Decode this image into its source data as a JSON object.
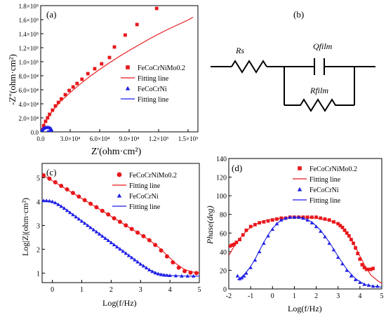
{
  "panels": {
    "a": {
      "tag": "(a)",
      "xlabel": "Z'(ohm·cm²)",
      "ylabel": "-Z''(ohm·cm²)",
      "xticks": [
        "0.0",
        "3.0×10⁴",
        "6.0×10⁴",
        "9.0×10⁴",
        "1.2×10⁵",
        "1.5×10⁵"
      ],
      "yticks": [
        "0.0",
        "2.0×10⁴",
        "4.0×10⁴",
        "6.0×10⁴",
        "8.0×10⁴",
        "1.0×10⁵",
        "1.2×10⁵",
        "1.4×10⁵",
        "1.6×10⁵",
        "1.8×10⁵"
      ],
      "legend": [
        "FeCoCrNiMo0.2",
        "Fitting line",
        "FeCoCrNi",
        "Fitting line"
      ]
    },
    "b": {
      "tag": "(b)",
      "rs_label": "Rs",
      "q_label": "Qfilm",
      "r_label": "Rfilm"
    },
    "c": {
      "tag": "(c)",
      "xlabel": "Log(f/Hz)",
      "ylabel": "Log|Z|(ohm·cm²)",
      "xticks": [
        "0",
        "1",
        "2",
        "3",
        "4",
        "5"
      ],
      "yticks": [
        "1",
        "2",
        "3",
        "4",
        "5"
      ],
      "legend": [
        "FeCoCrNiMo0.2",
        "Fitting line",
        "FeCoCrNi",
        "Fitting line"
      ]
    },
    "d": {
      "tag": "(d)",
      "xlabel": "Log(f/Hz)",
      "ylabel": "Phase(deg)",
      "xticks": [
        "-2",
        "-1",
        "0",
        "1",
        "2",
        "3",
        "4",
        "5"
      ],
      "yticks": [
        "0",
        "20",
        "40",
        "60",
        "80",
        "100",
        "120",
        "140"
      ],
      "legend": [
        "FeCoCrNiMo0.2",
        "Fitting line",
        "FeCoCrNi",
        "Fitting line"
      ]
    }
  },
  "colors": {
    "mo": "#e8171b",
    "ni": "#1f1fe6"
  },
  "chart_data": [
    {
      "id": "a",
      "type": "scatter",
      "title": "",
      "xlabel": "Z'(ohm·cm²)",
      "ylabel": "-Z''(ohm·cm²)",
      "xlim": [
        0,
        160000
      ],
      "ylim": [
        0,
        180000
      ],
      "series": [
        {
          "name": "FeCoCrNiMo0.2",
          "marker": "square",
          "color": "#e8171b",
          "x": [
            1000,
            3000,
            5000,
            7000,
            9000,
            12000,
            15000,
            18000,
            21000,
            25000,
            29000,
            33000,
            37000,
            42000,
            48000,
            55000,
            62000,
            70000,
            75000,
            86000,
            98000,
            118000
          ],
          "y": [
            3000,
            9000,
            15000,
            20000,
            25000,
            31000,
            37000,
            42000,
            47000,
            53000,
            59000,
            64000,
            69000,
            75000,
            83000,
            90000,
            97000,
            106000,
            121000,
            138000,
            153000,
            176000
          ]
        },
        {
          "name": "Fitting line",
          "marker": "line",
          "color": "#e8171b",
          "x": [
            0,
            1000,
            3000,
            6000,
            10000,
            15000,
            20000,
            30000,
            40000,
            50000,
            60000,
            70000,
            80000,
            90000,
            100000,
            110000,
            120000,
            130000,
            140000,
            150000,
            155000
          ],
          "y": [
            0,
            3500,
            10000,
            17500,
            26000,
            35000,
            43000,
            56000,
            68000,
            79000,
            89000,
            98500,
            107500,
            116000,
            124000,
            132000,
            139500,
            146500,
            153000,
            159500,
            163500
          ]
        },
        {
          "name": "FeCoCrNi",
          "marker": "triangle",
          "color": "#1f1fe6",
          "x": [
            300,
            700,
            1200,
            1800,
            2600,
            3500,
            4500,
            5600,
            6800,
            8000,
            9200,
            10200,
            10800,
            10900,
            10500,
            9800,
            9000,
            8200,
            7500,
            7000
          ],
          "y": [
            500,
            1500,
            2600,
            3600,
            4600,
            5400,
            6000,
            6400,
            6500,
            6400,
            5900,
            5000,
            3900,
            2800,
            1800,
            1000,
            400,
            100,
            0,
            0
          ]
        },
        {
          "name": "Fitting line",
          "marker": "line",
          "color": "#1f1fe6",
          "x": [
            0,
            500,
            1200,
            2200,
            3500,
            5000,
            6500,
            8000,
            9500,
            10600,
            11000,
            10900,
            10400,
            9600,
            8700,
            7800,
            7000
          ],
          "y": [
            0,
            900,
            2400,
            3900,
            5100,
            6000,
            6500,
            6500,
            6000,
            5000,
            3800,
            2600,
            1600,
            800,
            300,
            60,
            0
          ]
        }
      ]
    },
    {
      "id": "c",
      "type": "scatter",
      "title": "",
      "xlabel": "Log(f/Hz)",
      "ylabel": "Log|Z|(ohm·cm²)",
      "xlim": [
        -0.35,
        5
      ],
      "ylim": [
        0.6,
        5.6
      ],
      "series": [
        {
          "name": "FeCoCrNiMo0.2",
          "marker": "circle",
          "color": "#e8171b",
          "x": [
            -0.3,
            -0.1,
            0.1,
            0.3,
            0.5,
            0.7,
            0.9,
            1.1,
            1.3,
            1.5,
            1.7,
            1.9,
            2.1,
            2.3,
            2.5,
            2.7,
            2.9,
            3.1,
            3.3,
            3.5,
            3.7,
            3.9,
            4.1,
            4.3,
            4.5,
            4.7,
            4.9
          ],
          "y": [
            5.1,
            4.96,
            4.81,
            4.66,
            4.51,
            4.36,
            4.21,
            4.06,
            3.91,
            3.76,
            3.61,
            3.46,
            3.3,
            3.15,
            3.0,
            2.85,
            2.7,
            2.55,
            2.38,
            2.18,
            1.95,
            1.7,
            1.45,
            1.23,
            1.08,
            1.02,
            1.0
          ]
        },
        {
          "name": "Fitting line",
          "marker": "line",
          "color": "#e8171b",
          "x": [
            -0.35,
            0,
            0.5,
            1,
            1.5,
            2,
            2.5,
            3,
            3.3,
            3.6,
            3.9,
            4.2,
            4.5,
            4.8,
            5
          ],
          "y": [
            5.13,
            4.87,
            4.5,
            4.13,
            3.76,
            3.38,
            3.0,
            2.62,
            2.38,
            2.1,
            1.75,
            1.4,
            1.15,
            1.04,
            1.01
          ]
        },
        {
          "name": "FeCoCrNi",
          "marker": "triangle",
          "color": "#1f1fe6",
          "x": [
            -0.3,
            -0.2,
            -0.1,
            0.0,
            0.1,
            0.2,
            0.3,
            0.4,
            0.5,
            0.6,
            0.7,
            0.8,
            0.9,
            1.0,
            1.1,
            1.2,
            1.3,
            1.4,
            1.5,
            1.6,
            1.7,
            1.8,
            1.9,
            2.0,
            2.1,
            2.2,
            2.3,
            2.4,
            2.5,
            2.6,
            2.7,
            2.8,
            2.9,
            3.0,
            3.1,
            3.2,
            3.3,
            3.4,
            3.5,
            3.6,
            3.7,
            3.8,
            3.9,
            4.0,
            4.2,
            4.4,
            4.6,
            4.8
          ],
          "y": [
            4.04,
            4.04,
            4.03,
            4.0,
            3.95,
            3.88,
            3.8,
            3.72,
            3.63,
            3.54,
            3.45,
            3.36,
            3.27,
            3.18,
            3.09,
            3.0,
            2.91,
            2.82,
            2.73,
            2.64,
            2.55,
            2.46,
            2.37,
            2.28,
            2.19,
            2.1,
            2.01,
            1.92,
            1.83,
            1.74,
            1.65,
            1.56,
            1.47,
            1.38,
            1.3,
            1.22,
            1.14,
            1.07,
            1.01,
            0.97,
            0.94,
            0.92,
            0.91,
            0.9,
            0.89,
            0.88,
            0.88,
            0.88
          ]
        },
        {
          "name": "Fitting line",
          "marker": "line",
          "color": "#1f1fe6",
          "x": [
            -0.35,
            -0.2,
            0,
            0.2,
            0.4,
            0.7,
            1,
            1.5,
            2,
            2.5,
            3,
            3.3,
            3.6,
            4,
            4.5,
            5
          ],
          "y": [
            4.05,
            4.04,
            4.0,
            3.9,
            3.73,
            3.46,
            3.19,
            2.74,
            2.29,
            1.84,
            1.39,
            1.14,
            0.98,
            0.9,
            0.88,
            0.87
          ]
        }
      ]
    },
    {
      "id": "d",
      "type": "scatter",
      "title": "",
      "xlabel": "Log(f/Hz)",
      "ylabel": "Phase(deg)",
      "xlim": [
        -2,
        5
      ],
      "ylim": [
        0,
        140
      ],
      "series": [
        {
          "name": "FeCoCrNiMo0.2",
          "marker": "square",
          "color": "#e8171b",
          "x": [
            -1.95,
            -1.85,
            -1.75,
            -1.65,
            -1.5,
            -1.35,
            -1.2,
            -1.0,
            -0.8,
            -0.6,
            -0.4,
            -0.2,
            0.0,
            0.2,
            0.4,
            0.6,
            0.8,
            1.0,
            1.2,
            1.4,
            1.6,
            1.8,
            2.0,
            2.2,
            2.4,
            2.6,
            2.8,
            3.0,
            3.1,
            3.2,
            3.3,
            3.4,
            3.5,
            3.6,
            3.7,
            3.8,
            3.9,
            4.0,
            4.1,
            4.2,
            4.3,
            4.4,
            4.5,
            4.6
          ],
          "y": [
            46,
            47,
            48,
            50,
            53,
            58,
            63,
            67,
            69,
            71,
            72,
            73,
            74,
            75,
            76,
            76,
            77,
            77,
            77,
            77,
            77,
            77,
            77,
            76,
            75,
            74,
            72,
            70,
            68,
            66,
            63,
            60,
            57,
            53,
            49,
            44,
            38,
            32,
            26,
            23,
            21,
            21,
            21,
            22
          ]
        },
        {
          "name": "Fitting line",
          "marker": "line",
          "color": "#e8171b",
          "x": [
            -2,
            -1.8,
            -1.6,
            -1.4,
            -1.2,
            -1,
            -0.7,
            -0.4,
            0,
            0.5,
            1,
            1.5,
            2,
            2.5,
            3,
            3.3,
            3.6,
            3.9,
            4.2,
            4.5,
            4.8,
            5
          ],
          "y": [
            36,
            44,
            51,
            57,
            62,
            66,
            70,
            73,
            75,
            76,
            77,
            77,
            76,
            74,
            70,
            64,
            54,
            40,
            26,
            15,
            9,
            6
          ]
        },
        {
          "name": "FeCoCrNi",
          "marker": "triangle",
          "color": "#1f1fe6",
          "x": [
            -1.6,
            -1.5,
            -1.4,
            -1.3,
            -1.2,
            -1.0,
            -0.8,
            -0.6,
            -0.4,
            -0.2,
            0.0,
            0.2,
            0.4,
            0.6,
            0.8,
            1.0,
            1.2,
            1.4,
            1.6,
            1.8,
            2.0,
            2.2,
            2.4,
            2.6,
            2.8,
            3.0,
            3.2,
            3.4,
            3.6,
            3.8,
            4.0,
            4.2,
            4.4,
            4.6,
            4.8
          ],
          "y": [
            14,
            11,
            12,
            14,
            17,
            23,
            31,
            40,
            49,
            57,
            64,
            70,
            74,
            76,
            77,
            77,
            77,
            76,
            74,
            71,
            67,
            62,
            56,
            49,
            42,
            34,
            27,
            20,
            14,
            10,
            7,
            5,
            4,
            3,
            3
          ]
        },
        {
          "name": "Fitting line",
          "marker": "line",
          "color": "#1f1fe6",
          "x": [
            -1.6,
            -1.4,
            -1.2,
            -1,
            -0.8,
            -0.6,
            -0.4,
            -0.2,
            0,
            0.3,
            0.6,
            1,
            1.4,
            1.8,
            2.2,
            2.6,
            3,
            3.4,
            3.8,
            4.2,
            4.6,
            5
          ],
          "y": [
            10,
            13,
            18,
            24,
            32,
            41,
            50,
            58,
            65,
            72,
            76,
            77,
            76,
            72,
            63,
            50,
            35,
            21,
            11,
            5,
            3,
            2
          ]
        }
      ]
    }
  ]
}
